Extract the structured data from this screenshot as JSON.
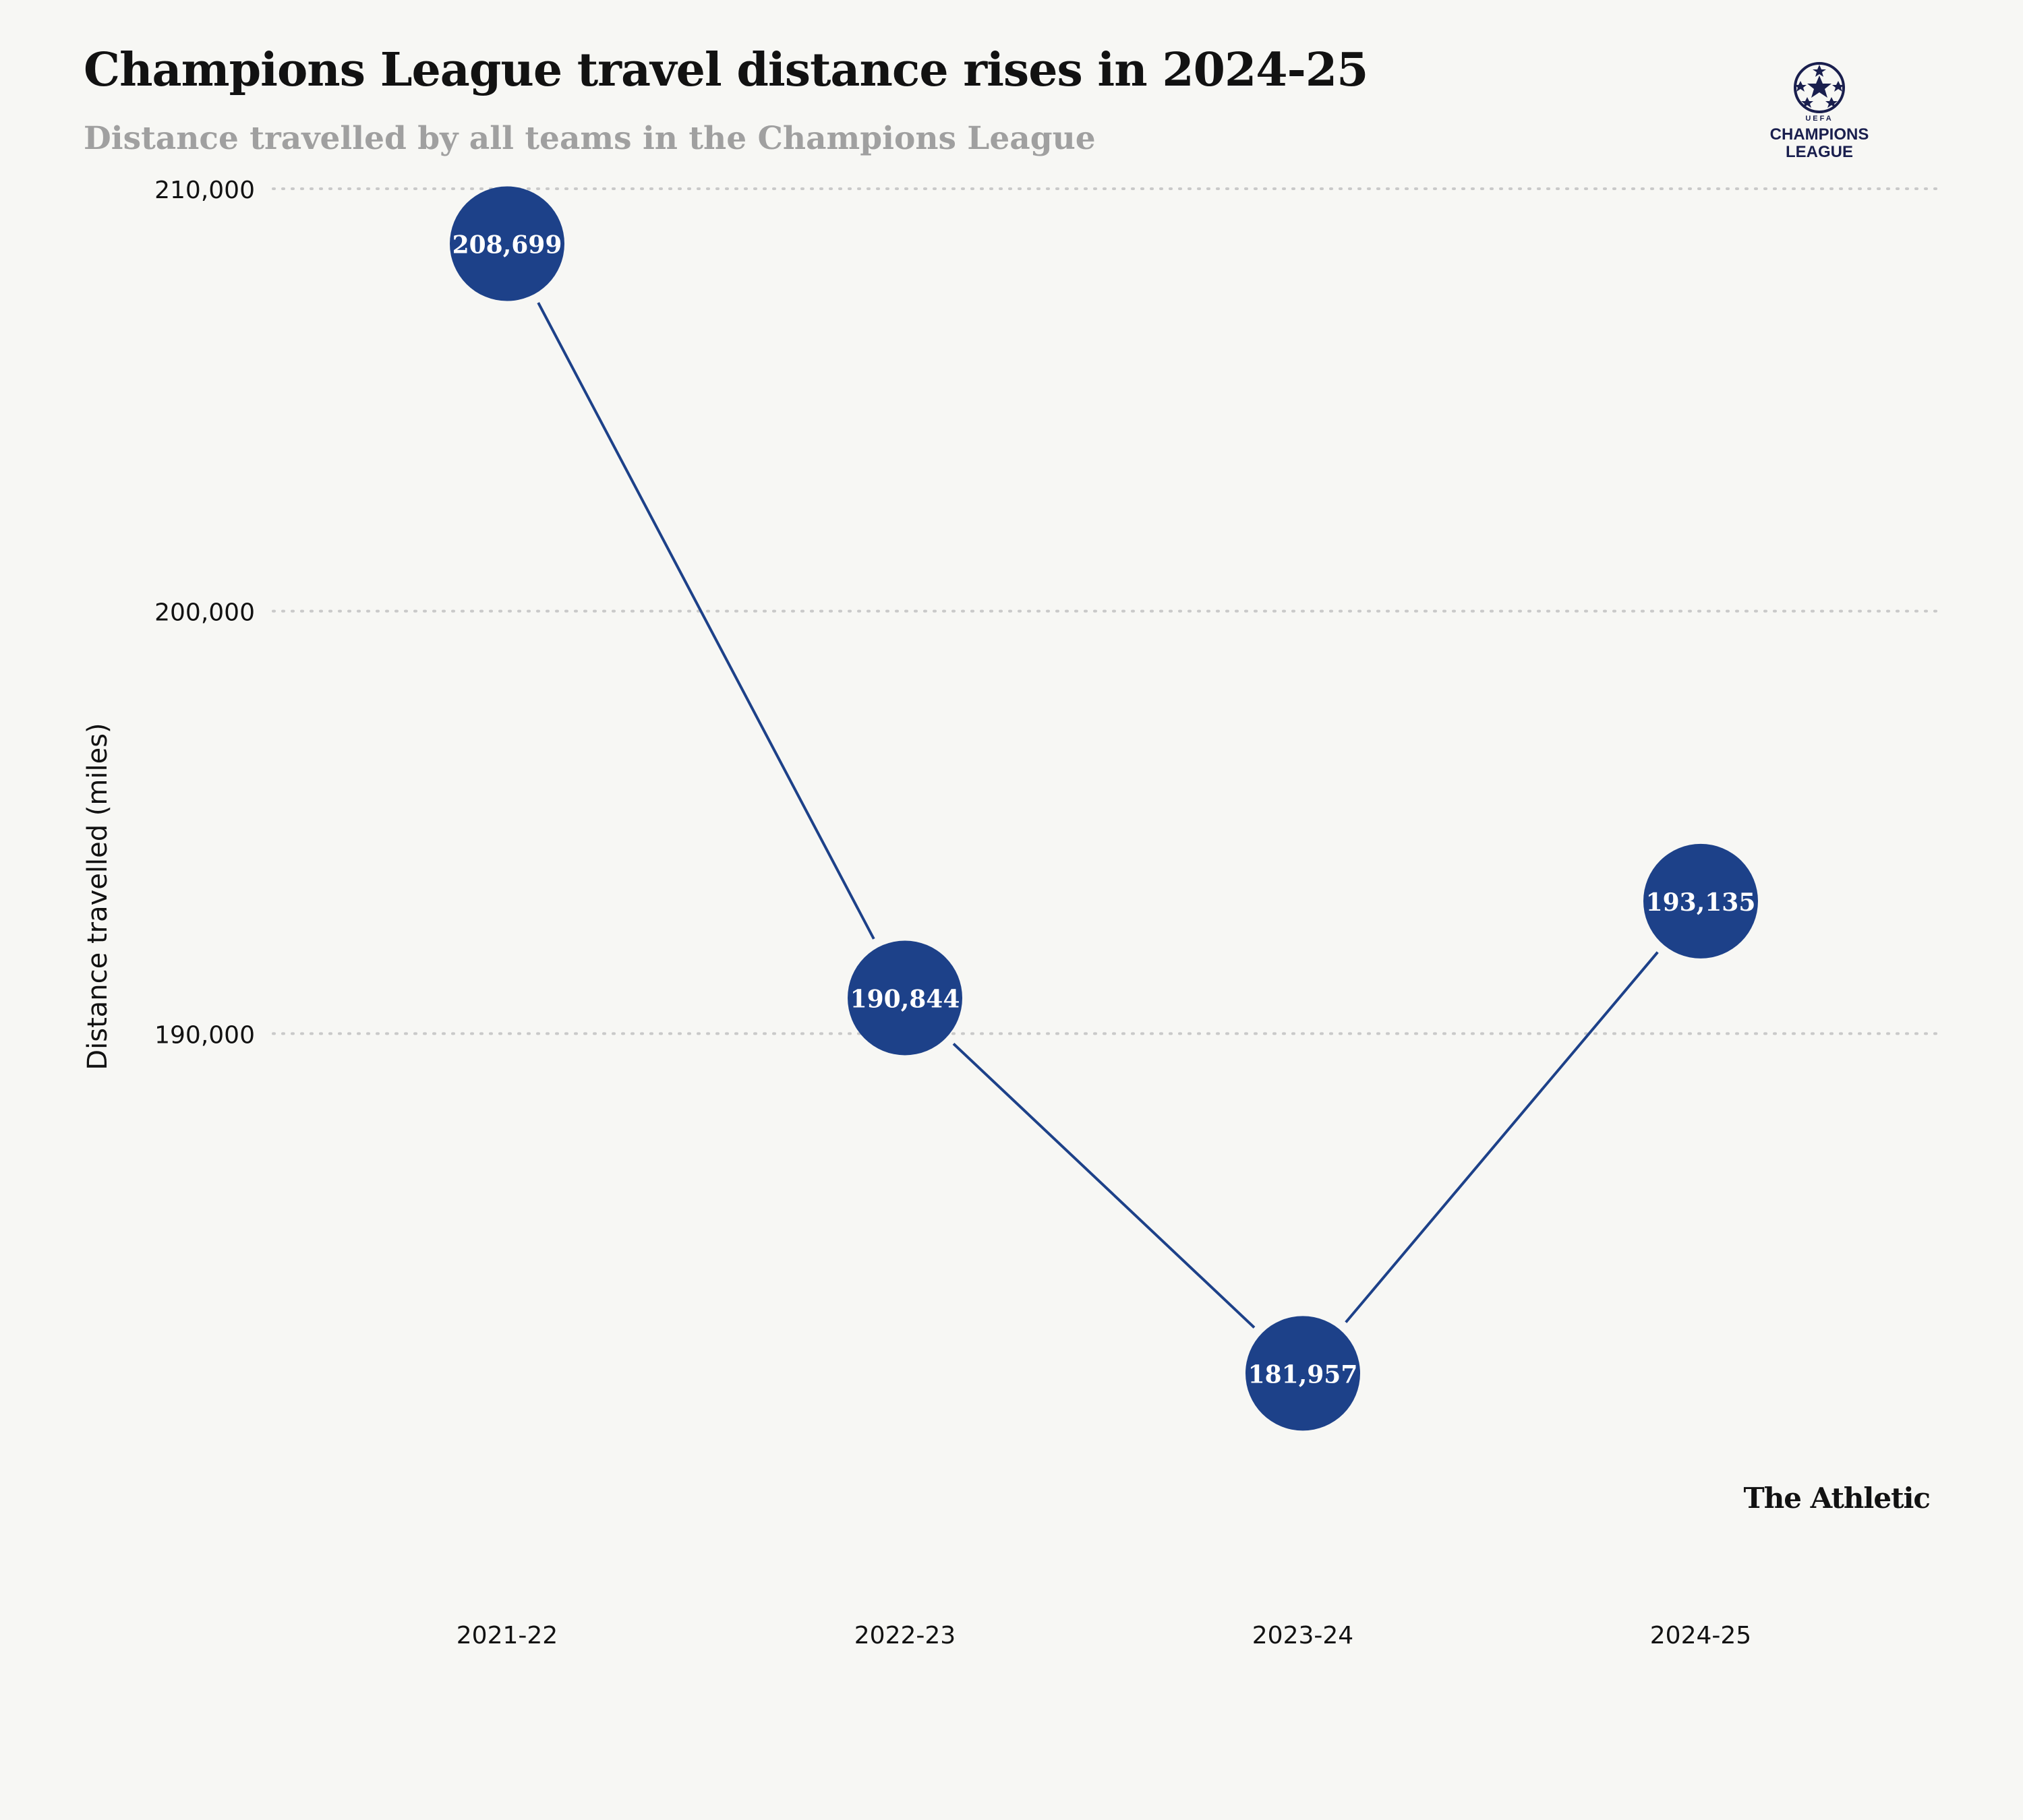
{
  "header": {
    "title": "Champions League travel distance rises in 2024-25",
    "subtitle": "Distance travelled by all teams in the Champions League"
  },
  "logo": {
    "icon": "champions-league-starball-icon",
    "uefa_text": "UEFA",
    "line1": "CHAMPIONS",
    "line2": "LEAGUE"
  },
  "footer": {
    "brand": "The Athletic"
  },
  "colors": {
    "marker": "#1d4189",
    "line": "#1d4189",
    "marker_text": "#ffffff",
    "grid": "#c9c9c9",
    "background": "#f7f7f4"
  },
  "chart_data": {
    "type": "line",
    "title": "Champions League travel distance rises in 2024-25",
    "subtitle": "Distance travelled by all teams in the Champions League",
    "xlabel": "",
    "ylabel": "Distance travelled (miles)",
    "categories": [
      "2021-22",
      "2022-23",
      "2023-24",
      "2024-25"
    ],
    "values": [
      208699,
      190844,
      181957,
      193135
    ],
    "value_labels": [
      "208,699",
      "190,844",
      "181,957",
      "193,135"
    ],
    "ylim": [
      180000,
      210000
    ],
    "yticks": [
      190000,
      200000,
      210000
    ],
    "ytick_labels": [
      "190,000",
      "200,000",
      "210,000"
    ],
    "grid": "horizontal dotted",
    "legend": "none"
  }
}
